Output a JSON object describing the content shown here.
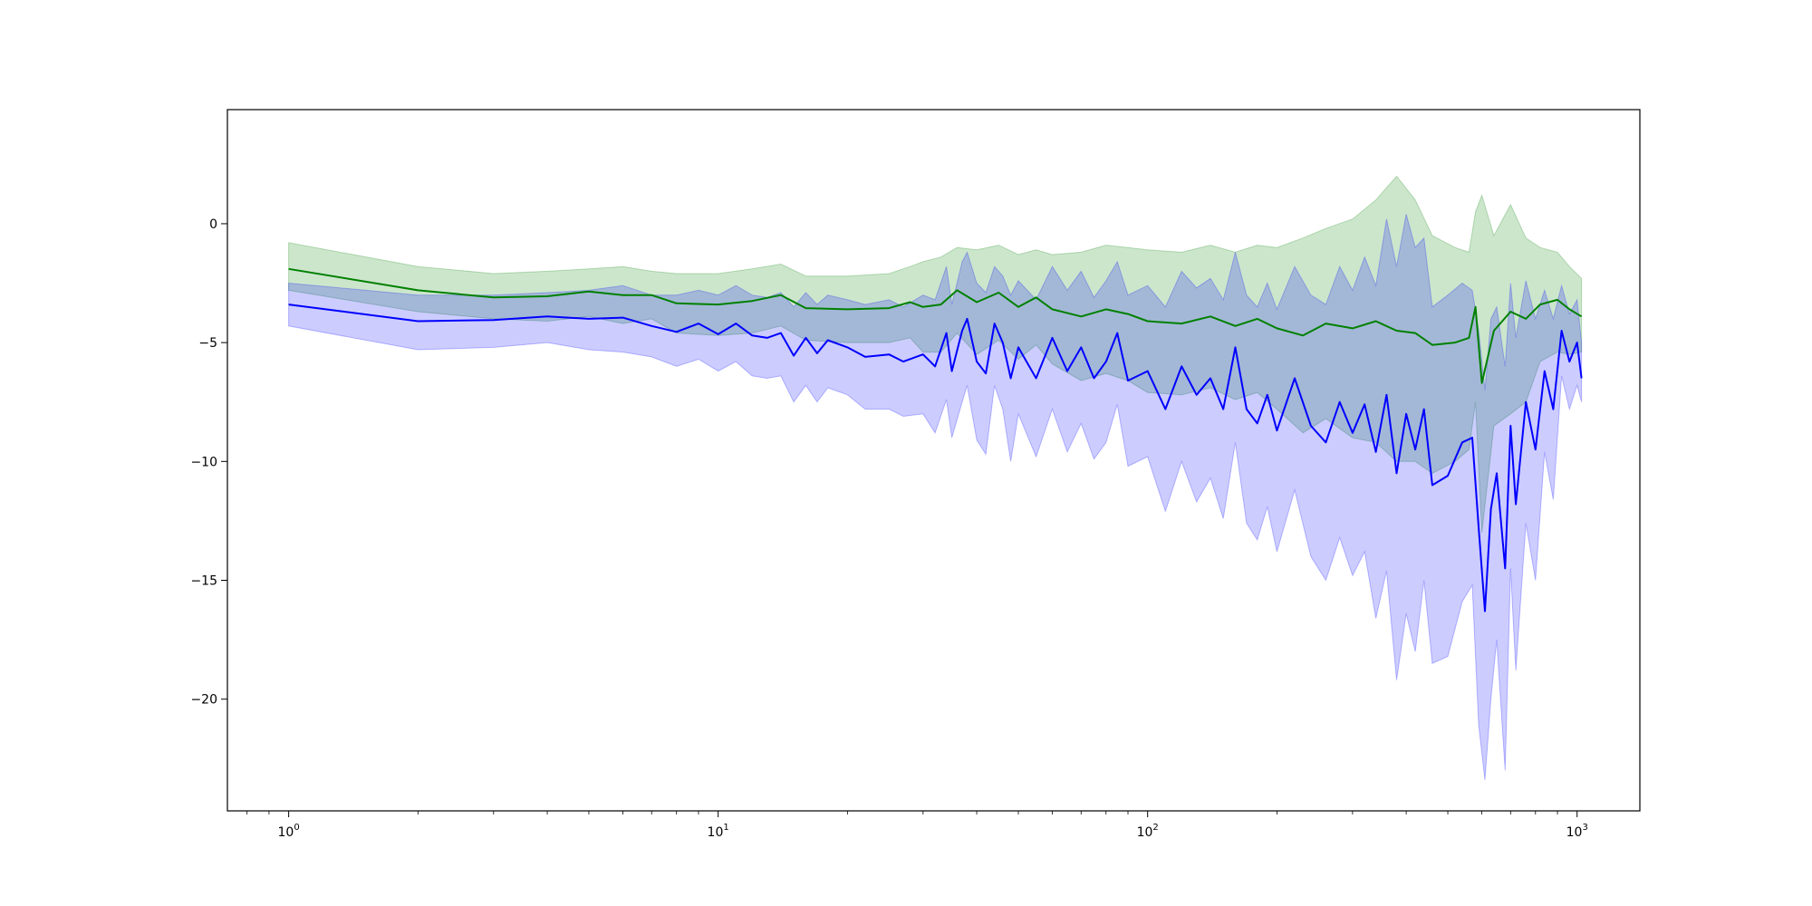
{
  "chart_data": {
    "type": "line",
    "title": "",
    "xlabel": "",
    "ylabel": "",
    "xscale": "log",
    "xlim": [
      0.72,
      1400
    ],
    "ylim": [
      -24.7,
      4.8
    ],
    "grid": false,
    "x_ticks": [
      {
        "value": 1,
        "base": "10",
        "exp": "0"
      },
      {
        "value": 10,
        "base": "10",
        "exp": "1"
      },
      {
        "value": 100,
        "base": "10",
        "exp": "2"
      },
      {
        "value": 1000,
        "base": "10",
        "exp": "3"
      }
    ],
    "y_ticks": [
      {
        "value": 0,
        "label": "0"
      },
      {
        "value": -5,
        "label": "−5"
      },
      {
        "value": -10,
        "label": "−10"
      },
      {
        "value": -15,
        "label": "−15"
      },
      {
        "value": -20,
        "label": "−20"
      }
    ],
    "series": [
      {
        "color": "#008000",
        "band_color": "#008000",
        "band_opacity": 0.2,
        "points": [
          [
            1,
            -1.9,
            -0.8,
            -2.8
          ],
          [
            2,
            -2.8,
            -1.8,
            -3.7
          ],
          [
            3,
            -3.1,
            -2.1,
            -4.0
          ],
          [
            4,
            -3.05,
            -2.0,
            -4.1
          ],
          [
            5,
            -2.85,
            -1.9,
            -3.9
          ],
          [
            6,
            -3.0,
            -1.8,
            -4.2
          ],
          [
            7,
            -3.0,
            -2.0,
            -4.0
          ],
          [
            8,
            -3.35,
            -2.1,
            -4.6
          ],
          [
            10,
            -3.4,
            -2.1,
            -4.7
          ],
          [
            12,
            -3.25,
            -1.9,
            -4.6
          ],
          [
            14,
            -3.0,
            -1.7,
            -4.3
          ],
          [
            16,
            -3.55,
            -2.2,
            -4.9
          ],
          [
            20,
            -3.6,
            -2.2,
            -5.0
          ],
          [
            25,
            -3.55,
            -2.1,
            -5.0
          ],
          [
            28,
            -3.3,
            -1.8,
            -4.8
          ],
          [
            30,
            -3.5,
            -1.6,
            -5.4
          ],
          [
            33,
            -3.4,
            -1.4,
            -5.4
          ],
          [
            36,
            -2.8,
            -1.0,
            -4.6
          ],
          [
            40,
            -3.3,
            -1.1,
            -5.5
          ],
          [
            45,
            -2.9,
            -0.9,
            -4.9
          ],
          [
            50,
            -3.5,
            -1.3,
            -5.7
          ],
          [
            55,
            -3.1,
            -1.1,
            -5.1
          ],
          [
            60,
            -3.6,
            -1.3,
            -5.9
          ],
          [
            70,
            -3.9,
            -1.2,
            -6.6
          ],
          [
            80,
            -3.6,
            -0.9,
            -6.3
          ],
          [
            90,
            -3.8,
            -1.0,
            -6.6
          ],
          [
            100,
            -4.1,
            -1.1,
            -7.1
          ],
          [
            120,
            -4.2,
            -1.2,
            -7.2
          ],
          [
            140,
            -3.9,
            -0.9,
            -6.9
          ],
          [
            160,
            -4.3,
            -1.2,
            -7.4
          ],
          [
            180,
            -4.0,
            -0.9,
            -7.1
          ],
          [
            200,
            -4.4,
            -1.0,
            -7.8
          ],
          [
            230,
            -4.7,
            -0.6,
            -8.8
          ],
          [
            260,
            -4.2,
            -0.2,
            -8.2
          ],
          [
            300,
            -4.4,
            0.2,
            -9.0
          ],
          [
            340,
            -4.1,
            1.0,
            -9.2
          ],
          [
            380,
            -4.5,
            2.0,
            -10.0
          ],
          [
            420,
            -4.6,
            1.0,
            -10.0
          ],
          [
            460,
            -5.1,
            -0.5,
            -10.5
          ],
          [
            520,
            -5.0,
            -1.0,
            -10.0
          ],
          [
            560,
            -4.8,
            -1.2,
            -9.5
          ],
          [
            580,
            -3.5,
            0.5,
            -7.5
          ],
          [
            600,
            -6.7,
            1.2,
            -13.0
          ],
          [
            640,
            -4.5,
            -0.5,
            -8.5
          ],
          [
            700,
            -3.7,
            0.8,
            -8.0
          ],
          [
            760,
            -4.0,
            -0.6,
            -7.5
          ],
          [
            820,
            -3.4,
            -1.0,
            -5.8
          ],
          [
            900,
            -3.2,
            -1.2,
            -5.4
          ],
          [
            960,
            -3.6,
            -1.8,
            -5.5
          ],
          [
            1024,
            -3.9,
            -2.3,
            -5.4
          ]
        ]
      },
      {
        "color": "#0000ff",
        "band_color": "#0000ff",
        "band_opacity": 0.2,
        "points": [
          [
            1,
            -3.4,
            -2.5,
            -4.3
          ],
          [
            2,
            -4.1,
            -3.0,
            -5.3
          ],
          [
            3,
            -4.05,
            -3.0,
            -5.2
          ],
          [
            4,
            -3.9,
            -2.9,
            -5.0
          ],
          [
            5,
            -4.0,
            -2.8,
            -5.3
          ],
          [
            6,
            -3.95,
            -2.6,
            -5.4
          ],
          [
            7,
            -4.3,
            -3.0,
            -5.6
          ],
          [
            8,
            -4.55,
            -3.0,
            -6.0
          ],
          [
            9,
            -4.2,
            -2.8,
            -5.7
          ],
          [
            10,
            -4.65,
            -3.0,
            -6.2
          ],
          [
            11,
            -4.2,
            -2.6,
            -5.8
          ],
          [
            12,
            -4.7,
            -3.0,
            -6.4
          ],
          [
            13,
            -4.8,
            -3.1,
            -6.5
          ],
          [
            14,
            -4.6,
            -2.9,
            -6.4
          ],
          [
            15,
            -5.55,
            -3.5,
            -7.5
          ],
          [
            16,
            -4.8,
            -2.9,
            -6.8
          ],
          [
            17,
            -5.45,
            -3.4,
            -7.5
          ],
          [
            18,
            -4.9,
            -3.0,
            -6.9
          ],
          [
            20,
            -5.2,
            -3.2,
            -7.2
          ],
          [
            22,
            -5.6,
            -3.4,
            -7.8
          ],
          [
            25,
            -5.5,
            -3.2,
            -7.8
          ],
          [
            27,
            -5.8,
            -3.5,
            -8.1
          ],
          [
            30,
            -5.5,
            -3.0,
            -8.0
          ],
          [
            32,
            -6.0,
            -3.2,
            -8.8
          ],
          [
            34,
            -4.6,
            -1.8,
            -7.4
          ],
          [
            35,
            -6.2,
            -3.4,
            -9.0
          ],
          [
            37,
            -4.5,
            -1.6,
            -7.5
          ],
          [
            38,
            -4.0,
            -1.2,
            -6.8
          ],
          [
            40,
            -5.8,
            -2.5,
            -9.1
          ],
          [
            42,
            -6.3,
            -2.9,
            -9.7
          ],
          [
            44,
            -4.2,
            -1.8,
            -6.8
          ],
          [
            46,
            -5.0,
            -2.2,
            -7.8
          ],
          [
            48,
            -6.5,
            -3.0,
            -10.0
          ],
          [
            50,
            -5.2,
            -2.4,
            -8.0
          ],
          [
            55,
            -6.5,
            -3.2,
            -9.8
          ],
          [
            60,
            -4.8,
            -1.8,
            -7.8
          ],
          [
            65,
            -6.2,
            -2.8,
            -9.6
          ],
          [
            70,
            -5.2,
            -2.0,
            -8.4
          ],
          [
            75,
            -6.5,
            -3.1,
            -9.9
          ],
          [
            80,
            -5.8,
            -2.4,
            -9.2
          ],
          [
            85,
            -4.6,
            -1.6,
            -7.6
          ],
          [
            90,
            -6.6,
            -3.0,
            -10.2
          ],
          [
            100,
            -6.2,
            -2.6,
            -9.8
          ],
          [
            110,
            -7.8,
            -3.5,
            -12.1
          ],
          [
            120,
            -6.0,
            -2.0,
            -10.0
          ],
          [
            130,
            -7.2,
            -2.7,
            -11.7
          ],
          [
            140,
            -6.5,
            -2.3,
            -10.7
          ],
          [
            150,
            -7.8,
            -3.2,
            -12.4
          ],
          [
            160,
            -5.2,
            -1.2,
            -9.2
          ],
          [
            170,
            -7.8,
            -3.0,
            -12.6
          ],
          [
            180,
            -8.4,
            -3.5,
            -13.3
          ],
          [
            190,
            -7.2,
            -2.5,
            -11.9
          ],
          [
            200,
            -8.7,
            -3.6,
            -13.8
          ],
          [
            220,
            -6.5,
            -1.8,
            -11.2
          ],
          [
            240,
            -8.5,
            -3.0,
            -14.0
          ],
          [
            260,
            -9.2,
            -3.4,
            -15.0
          ],
          [
            280,
            -7.5,
            -1.8,
            -13.2
          ],
          [
            300,
            -8.8,
            -2.8,
            -14.8
          ],
          [
            320,
            -7.6,
            -1.4,
            -13.8
          ],
          [
            340,
            -9.6,
            -2.6,
            -16.6
          ],
          [
            360,
            -7.2,
            0.2,
            -14.6
          ],
          [
            380,
            -10.5,
            -1.8,
            -19.2
          ],
          [
            400,
            -8.0,
            0.4,
            -16.4
          ],
          [
            420,
            -9.5,
            -1.0,
            -18.0
          ],
          [
            440,
            -7.8,
            -0.6,
            -15.0
          ],
          [
            460,
            -11.0,
            -3.5,
            -18.5
          ],
          [
            500,
            -10.6,
            -3.0,
            -18.2
          ],
          [
            540,
            -9.2,
            -2.5,
            -15.9
          ],
          [
            570,
            -9.0,
            -2.8,
            -15.2
          ],
          [
            590,
            -12.8,
            -4.5,
            -21.1
          ],
          [
            610,
            -16.3,
            -7.0,
            -23.4
          ],
          [
            630,
            -12.0,
            -4.0,
            -20.0
          ],
          [
            650,
            -10.5,
            -3.5,
            -17.5
          ],
          [
            680,
            -14.5,
            -6.0,
            -23.0
          ],
          [
            700,
            -8.5,
            -2.5,
            -14.5
          ],
          [
            720,
            -11.8,
            -4.8,
            -18.8
          ],
          [
            760,
            -7.5,
            -2.4,
            -12.6
          ],
          [
            800,
            -9.5,
            -4.0,
            -15.0
          ],
          [
            840,
            -6.2,
            -2.8,
            -9.6
          ],
          [
            880,
            -7.8,
            -4.0,
            -11.6
          ],
          [
            920,
            -4.5,
            -2.6,
            -6.4
          ],
          [
            960,
            -5.8,
            -3.8,
            -7.8
          ],
          [
            1000,
            -5.0,
            -3.2,
            -6.8
          ],
          [
            1024,
            -6.5,
            -5.0,
            -7.5
          ]
        ]
      }
    ]
  }
}
